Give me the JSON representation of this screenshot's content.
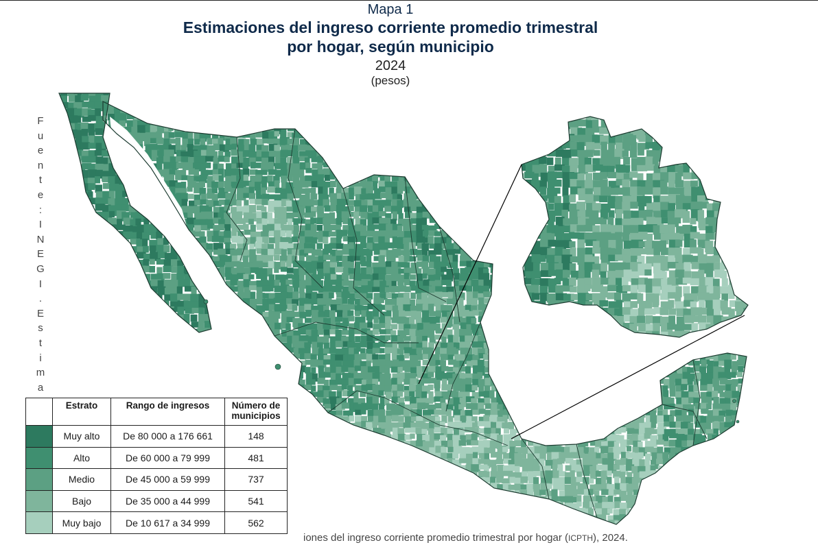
{
  "header": {
    "map_number": "Mapa 1",
    "title_line1": "Estimaciones del ingreso corriente promedio trimestral",
    "title_line2": "por hogar, según municipio",
    "year": "2024",
    "unit": "(pesos)"
  },
  "source_vertical": "Fuente: INEGI. Estimac",
  "footer": {
    "prefix": "iones del ingreso corriente promedio trimestral por hogar (",
    "acronym": "ICPTH",
    "suffix": "), 2024."
  },
  "legend": {
    "headers": [
      "Estrato",
      "Rango de ingresos",
      "Número de municipios"
    ],
    "rows": [
      {
        "stratum": "Muy alto",
        "range": "De 80 000 a 176 661",
        "count": "148",
        "color": "#2d7a5f"
      },
      {
        "stratum": "Alto",
        "range": "De 60 000 a 79 999",
        "count": "481",
        "color": "#3f8f70"
      },
      {
        "stratum": "Medio",
        "range": "De 45 000 a 59 999",
        "count": "737",
        "color": "#5ca083"
      },
      {
        "stratum": "Bajo",
        "range": "De 35 000 a 44 999",
        "count": "541",
        "color": "#7fb59c"
      },
      {
        "stratum": "Muy bajo",
        "range": "De 10 617 a 34 999",
        "count": "562",
        "color": "#a6cfbd"
      }
    ]
  },
  "colors": {
    "title": "#0f2a4a",
    "border": "#1c3b30"
  }
}
